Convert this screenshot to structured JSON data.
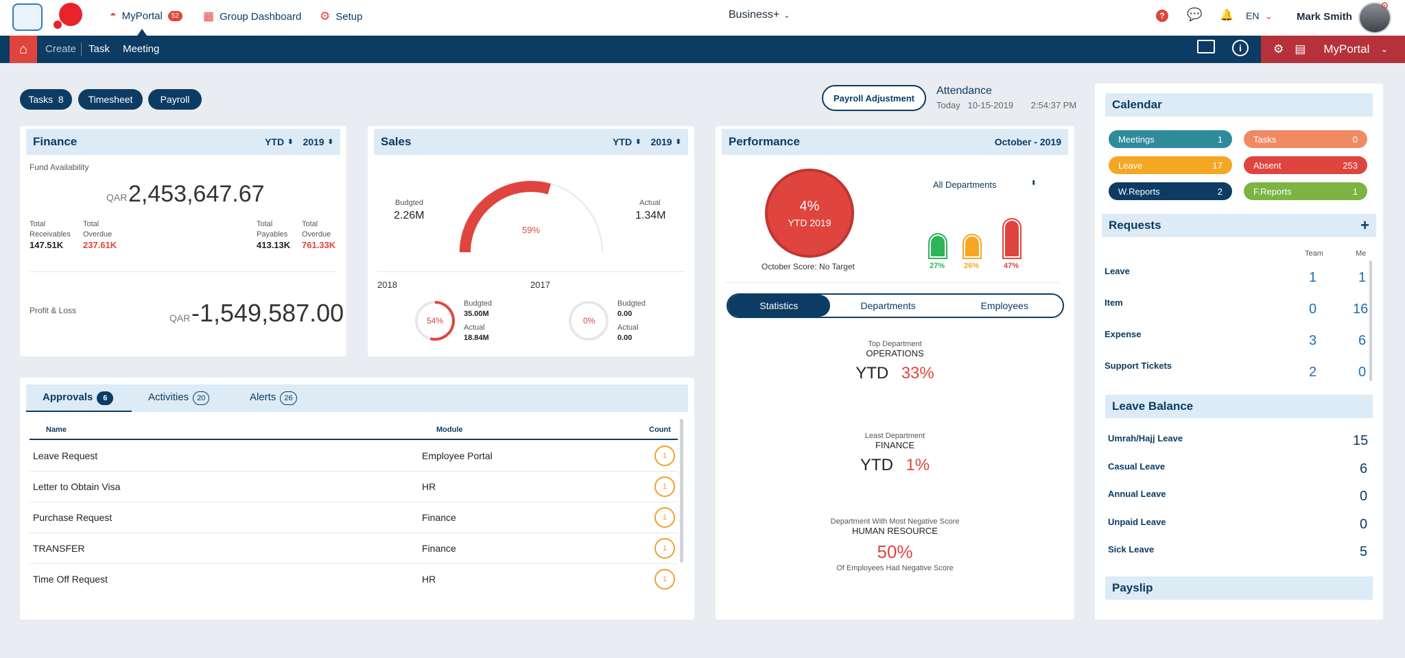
{
  "topbar": {
    "myportal_label": "MyPortal",
    "myportal_badge": "52",
    "group_dashboard_label": "Group Dashboard",
    "setup_label": "Setup",
    "app_selector": "Business+",
    "language": "EN",
    "user_name": "Mark Smith"
  },
  "navbar": {
    "create": "Create",
    "task": "Task",
    "meeting": "Meeting",
    "portal_menu": "MyPortal"
  },
  "quick_pills": [
    {
      "label": "Tasks",
      "count": "8"
    },
    {
      "label": "Timesheet"
    },
    {
      "label": "Payroll"
    }
  ],
  "payroll_adjustment": "Payroll Adjustment",
  "attendance": {
    "title": "Attendance",
    "today": "Today",
    "date": "10-15-2019",
    "time": "2:54:37 PM"
  },
  "finance": {
    "title": "Finance",
    "period": "YTD",
    "year": "2019",
    "fund_label": "Fund Availability",
    "currency": "QAR",
    "fund_value": "2,453,647.67",
    "stats": [
      {
        "l1": "Total",
        "l2": "Receivables",
        "value": "147.51K"
      },
      {
        "l1": "Total",
        "l2": "Overdue",
        "value": "237.61K"
      },
      {
        "l1": "Total",
        "l2": "Payables",
        "value": "413.13K"
      },
      {
        "l1": "Total",
        "l2": "Overdue",
        "value": "761.33K"
      }
    ],
    "pl_label": "Profit & Loss",
    "pl_value": "-1,549,587.00"
  },
  "sales": {
    "title": "Sales",
    "period": "YTD",
    "year": "2019",
    "budgeted_label": "Budgted",
    "budgeted_value": "2.26M",
    "actual_label": "Actual",
    "actual_value": "1.34M",
    "gauge_pct": "59%",
    "gauge_fraction": 0.59,
    "year_a": {
      "year": "2018",
      "pct": "54%",
      "fraction": 0.54,
      "budgeted_label": "Budgted",
      "budgeted": "35.00M",
      "actual_label": "Actual",
      "actual": "18.84M"
    },
    "year_b": {
      "year": "2017",
      "pct": "0%",
      "fraction": 0,
      "budgeted_label": "Budgted",
      "budgeted": "0.00",
      "actual_label": "Actual",
      "actual": "0.00"
    }
  },
  "performance": {
    "title": "Performance",
    "period": "October - 2019",
    "score_pct": "4%",
    "score_sub": "YTD 2019",
    "score_caption": "October Score: No Target",
    "dept_filter": "All Departments",
    "bars": [
      {
        "pct": "27%",
        "value": 27,
        "color": "#2fb45a"
      },
      {
        "pct": "26%",
        "value": 26,
        "color": "#f5a623"
      },
      {
        "pct": "47%",
        "value": 47,
        "color": "#e0443e"
      }
    ],
    "tabs": [
      "Statistics",
      "Departments",
      "Employees"
    ],
    "top": {
      "caption": "Top Department",
      "name": "OPERATIONS",
      "ytd": "YTD",
      "pct": "33%"
    },
    "least": {
      "caption": "Least Department",
      "name": "FINANCE",
      "ytd": "YTD",
      "pct": "1%"
    },
    "negative": {
      "caption": "Department With Most Negative Score",
      "name": "HUMAN RESOURCE",
      "pct": "50%",
      "sub": "Of Employees Had Negative Score"
    }
  },
  "approvals": {
    "tabs": [
      {
        "label": "Approvals",
        "count": "6"
      },
      {
        "label": "Activities",
        "count": "20"
      },
      {
        "label": "Alerts",
        "count": "26"
      }
    ],
    "columns": [
      "Name",
      "Module",
      "Count"
    ],
    "rows": [
      {
        "name": "Leave Request",
        "module": "Employee Portal",
        "count": "1"
      },
      {
        "name": "Letter to Obtain Visa",
        "module": "HR",
        "count": "1"
      },
      {
        "name": "Purchase Request",
        "module": "Finance",
        "count": "1"
      },
      {
        "name": "TRANSFER",
        "module": "Finance",
        "count": "1"
      },
      {
        "name": "Time Off Request",
        "module": "HR",
        "count": "1"
      }
    ]
  },
  "calendar": {
    "title": "Calendar",
    "items": [
      {
        "label": "Meetings",
        "value": "1",
        "color": "#2e8b9a"
      },
      {
        "label": "Tasks",
        "value": "0",
        "color": "#ef8a63"
      },
      {
        "label": "Leave",
        "value": "17",
        "color": "#f5a623"
      },
      {
        "label": "Absent",
        "value": "253",
        "color": "#e0443e"
      },
      {
        "label": "W.Reports",
        "value": "2",
        "color": "#0c3b63"
      },
      {
        "label": "F.Reports",
        "value": "1",
        "color": "#7cb342"
      }
    ]
  },
  "requests": {
    "title": "Requests",
    "col_team": "Team",
    "col_me": "Me",
    "rows": [
      {
        "label": "Leave",
        "team": "1",
        "me": "1"
      },
      {
        "label": "Item",
        "team": "0",
        "me": "16"
      },
      {
        "label": "Expense",
        "team": "3",
        "me": "6"
      },
      {
        "label": "Support Tickets",
        "team": "2",
        "me": "0"
      }
    ]
  },
  "leave_balance": {
    "title": "Leave Balance",
    "rows": [
      {
        "label": "Umrah/Hajj Leave",
        "value": "15"
      },
      {
        "label": "Casual Leave",
        "value": "6"
      },
      {
        "label": "Annual Leave",
        "value": "0"
      },
      {
        "label": "Unpaid Leave",
        "value": "0"
      },
      {
        "label": "Sick Leave",
        "value": "5"
      }
    ]
  },
  "payslip": {
    "title": "Payslip"
  }
}
